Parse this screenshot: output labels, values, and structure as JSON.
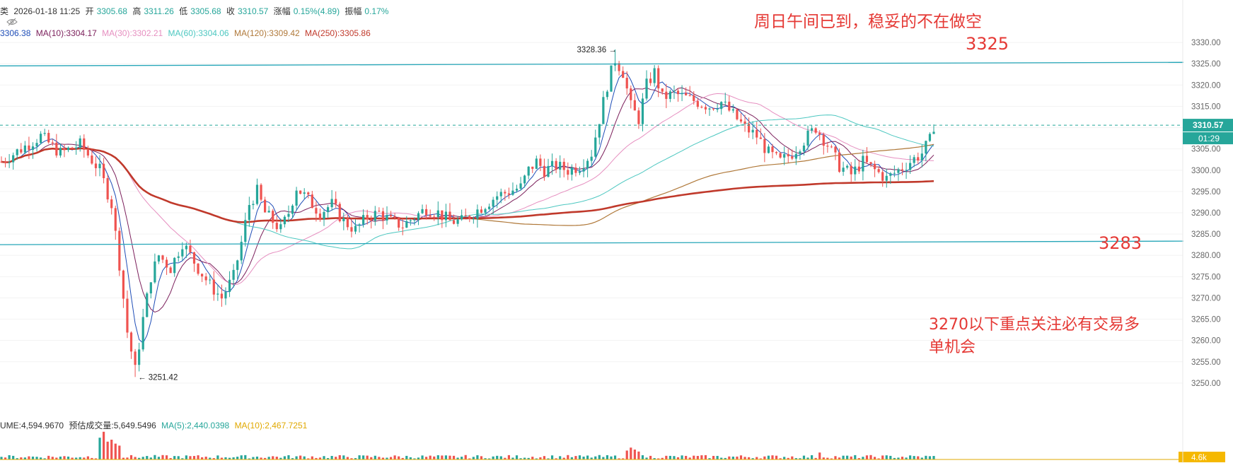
{
  "header": {
    "prefix": "类",
    "datetime": "2026-01-18 11:25",
    "open_label": "开",
    "open": "3305.68",
    "high_label": "高",
    "high": "3311.26",
    "low_label": "低",
    "low": "3305.68",
    "close_label": "收",
    "close": "3310.57",
    "change_label": "涨幅",
    "change": "0.15%(4.89)",
    "amp_label": "振幅",
    "amp": "0.17%"
  },
  "ma_legend": [
    {
      "text": "3306.38",
      "color": "#1e4db7"
    },
    {
      "text": "MA(10):3304.17",
      "color": "#7b1f5b"
    },
    {
      "text": "MA(30):3302.21",
      "color": "#e68fc0"
    },
    {
      "text": "MA(60):3304.06",
      "color": "#4cc7c0"
    },
    {
      "text": "MA(120):3309.42",
      "color": "#b0793a"
    },
    {
      "text": "MA(250):3305.86",
      "color": "#c0392b"
    }
  ],
  "volume_legend": {
    "main": "UME:4,594.9670",
    "est_label": "预估成交量:",
    "est": "5,649.5496",
    "ma5": "MA(5):2,440.0398",
    "ma10": "MA(10):2,467.7251"
  },
  "annotations": {
    "title": "周日午间已到，稳妥的不在做空",
    "level_high": "3325",
    "level_low": "3283",
    "note_line1": "3270以下重点关注必有交易多",
    "note_line2": "单机会"
  },
  "price_tag": {
    "price": "3310.57",
    "countdown": "01:29"
  },
  "volume_tag": "4.6k",
  "colors": {
    "up": "#26a69a",
    "down": "#ef5350",
    "accent": "#e53935",
    "hline": "#26a6b8"
  },
  "chart_data": {
    "type": "candlestick",
    "interval": "5m",
    "ylim": [
      3245,
      3333
    ],
    "yticks": [
      3250,
      3255,
      3260,
      3265,
      3270,
      3275,
      3280,
      3285,
      3290,
      3295,
      3300,
      3305,
      3310,
      3315,
      3320,
      3325,
      3330
    ],
    "ytick_labels": [
      "3250.00",
      "3255.00",
      "3260.00",
      "3265.00",
      "3270.00",
      "3275.00",
      "3280.00",
      "3285.00",
      "3290.00",
      "3295.00",
      "3300.00",
      "3305.00",
      "3310.00",
      "3315.00",
      "3320.00",
      "3325.00",
      "3330.00"
    ],
    "high_marker": {
      "label": "3328.36",
      "value": 3328.36
    },
    "low_marker": {
      "label": "3251.42",
      "value": 3251.42
    },
    "current_price": 3310.57,
    "price_path": [
      [
        0,
        3302
      ],
      [
        5,
        3305
      ],
      [
        10,
        3308
      ],
      [
        15,
        3304
      ],
      [
        20,
        3306
      ],
      [
        25,
        3300
      ],
      [
        28,
        3292
      ],
      [
        30,
        3278
      ],
      [
        32,
        3262
      ],
      [
        34,
        3253
      ],
      [
        36,
        3265
      ],
      [
        38,
        3275
      ],
      [
        40,
        3280
      ],
      [
        43,
        3277
      ],
      [
        46,
        3283
      ],
      [
        48,
        3280
      ],
      [
        50,
        3277
      ],
      [
        53,
        3273
      ],
      [
        56,
        3270
      ],
      [
        59,
        3275
      ],
      [
        61,
        3283
      ],
      [
        63,
        3292
      ],
      [
        65,
        3295
      ],
      [
        67,
        3290
      ],
      [
        69,
        3288
      ],
      [
        71,
        3286
      ],
      [
        73,
        3290
      ],
      [
        75,
        3296
      ],
      [
        77,
        3294
      ],
      [
        79,
        3292
      ],
      [
        81,
        3290
      ],
      [
        84,
        3292
      ],
      [
        87,
        3288
      ],
      [
        90,
        3286
      ],
      [
        93,
        3289
      ],
      [
        96,
        3290
      ],
      [
        99,
        3288
      ],
      [
        102,
        3287
      ],
      [
        105,
        3289
      ],
      [
        108,
        3291
      ],
      [
        111,
        3290
      ],
      [
        114,
        3288
      ],
      [
        117,
        3288
      ],
      [
        120,
        3290
      ],
      [
        123,
        3292
      ],
      [
        126,
        3294
      ],
      [
        129,
        3295
      ],
      [
        132,
        3296
      ],
      [
        134,
        3300
      ],
      [
        136,
        3302
      ],
      [
        138,
        3300
      ],
      [
        141,
        3301
      ],
      [
        144,
        3300
      ],
      [
        147,
        3301
      ],
      [
        150,
        3304
      ],
      [
        152,
        3312
      ],
      [
        154,
        3320
      ],
      [
        156,
        3326
      ],
      [
        158,
        3323
      ],
      [
        160,
        3315
      ],
      [
        162,
        3312
      ],
      [
        164,
        3320
      ],
      [
        166,
        3323
      ],
      [
        168,
        3317
      ],
      [
        171,
        3318
      ],
      [
        174,
        3317
      ],
      [
        177,
        3316
      ],
      [
        180,
        3315
      ],
      [
        183,
        3316
      ],
      [
        186,
        3313
      ],
      [
        189,
        3310
      ],
      [
        192,
        3308
      ],
      [
        195,
        3304
      ],
      [
        198,
        3302
      ],
      [
        201,
        3304
      ],
      [
        204,
        3307
      ],
      [
        207,
        3310
      ],
      [
        210,
        3306
      ],
      [
        213,
        3301
      ],
      [
        216,
        3299
      ],
      [
        219,
        3302
      ],
      [
        222,
        3300
      ],
      [
        225,
        3298
      ],
      [
        228,
        3300
      ],
      [
        231,
        3302
      ],
      [
        234,
        3304
      ],
      [
        236,
        3307
      ],
      [
        237,
        3310.57
      ]
    ],
    "horizontal_levels": [
      {
        "name": "3325",
        "value": 3325,
        "color": "#26a6b8"
      },
      {
        "name": "3283",
        "value": 3283,
        "color": "#26a6b8"
      }
    ],
    "volume_ylim": [
      0,
      30
    ],
    "volume_highlights": [
      {
        "bar": 25,
        "value": 22
      },
      {
        "bar": 26,
        "value": 28
      },
      {
        "bar": 27,
        "value": 18
      },
      {
        "bar": 28,
        "value": 20
      },
      {
        "bar": 29,
        "value": 16
      },
      {
        "bar": 30,
        "value": 14
      },
      {
        "bar": 159,
        "value": 9
      },
      {
        "bar": 160,
        "value": 12
      },
      {
        "bar": 161,
        "value": 10
      },
      {
        "bar": 162,
        "value": 8
      },
      {
        "bar": 208,
        "value": 7
      }
    ]
  }
}
